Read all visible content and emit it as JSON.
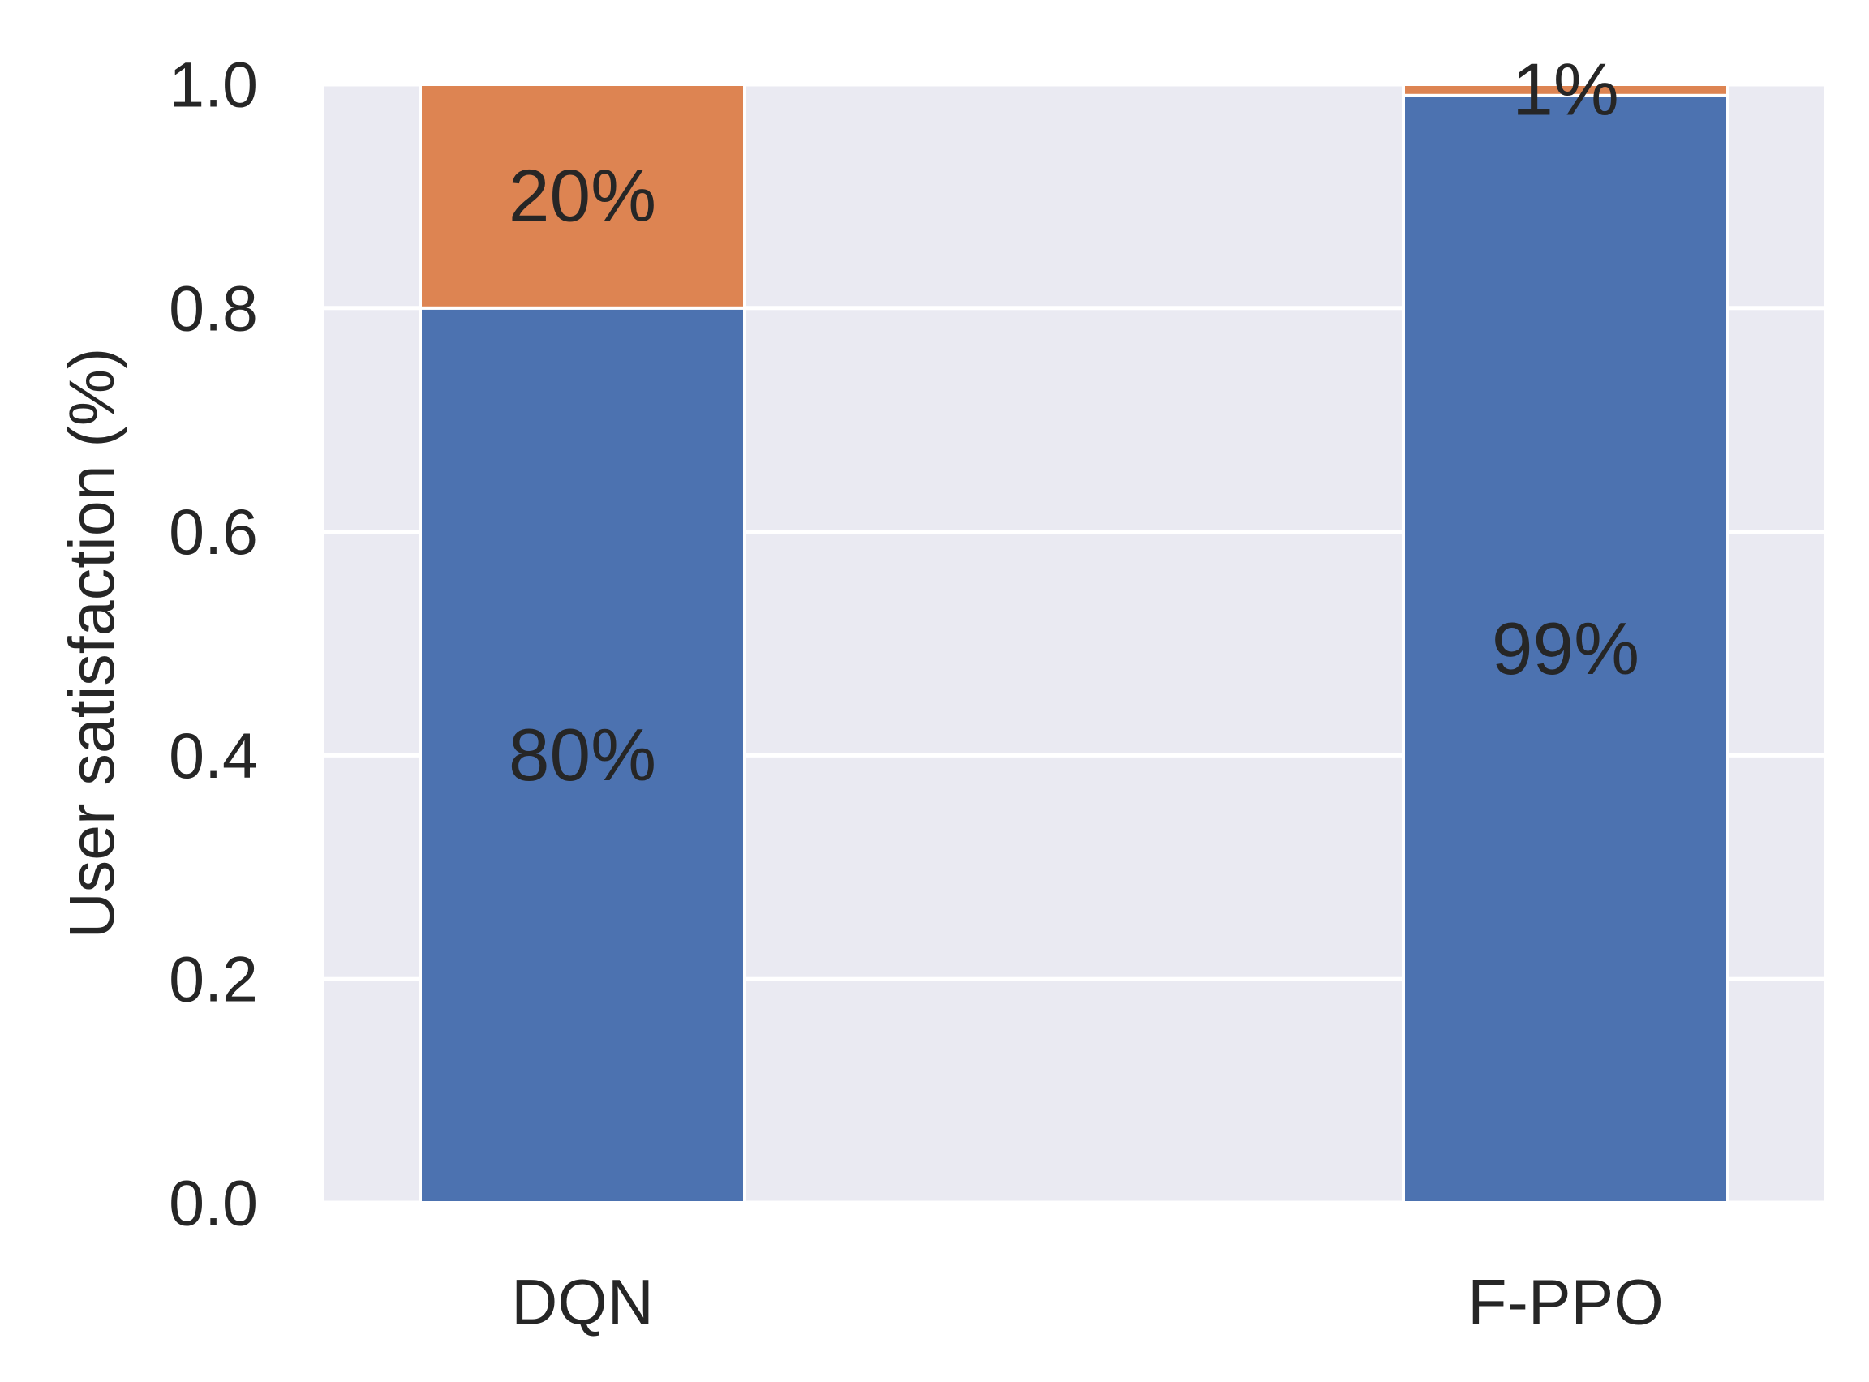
{
  "chart_data": {
    "type": "bar",
    "stacked": true,
    "categories": [
      "DQN",
      "F-PPO"
    ],
    "series": [
      {
        "values": [
          0.8,
          0.99
        ],
        "color": "#4c72b0"
      },
      {
        "values": [
          0.2,
          0.01
        ],
        "color": "#dd8452"
      }
    ],
    "bar_labels": [
      [
        "80%",
        "99%"
      ],
      [
        "20%",
        "1%"
      ]
    ],
    "ylabel": "User satisfaction (%)",
    "xlabel": "",
    "ylim": [
      0,
      1.0
    ],
    "yticks": [
      "0.0",
      "0.2",
      "0.4",
      "0.6",
      "0.8",
      "1.0"
    ],
    "grid": true,
    "background": "#eaeaf2"
  }
}
